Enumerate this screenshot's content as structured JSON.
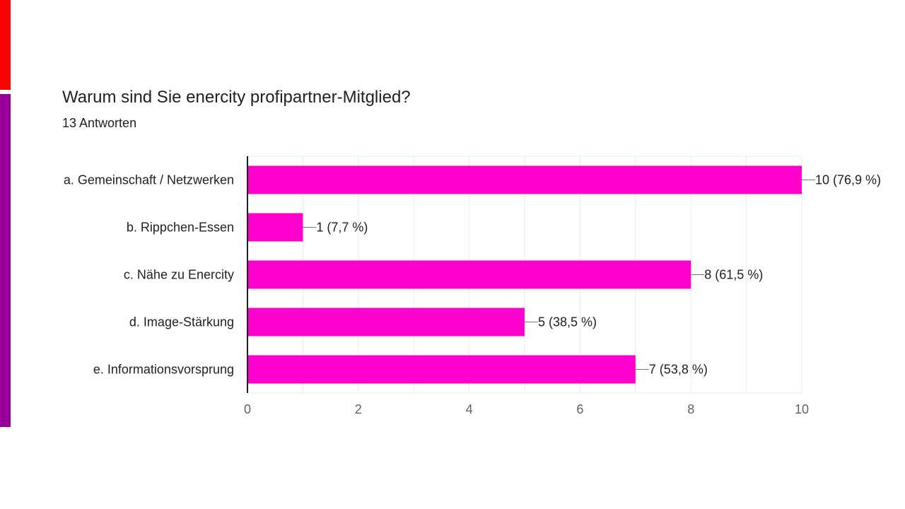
{
  "colors": {
    "accent_top": "#ff0000",
    "accent_bottom": "#990099",
    "bar": "#ff00cc",
    "text": "#202124",
    "tick": "#5f6368",
    "grid": "#ebebeb",
    "axis": "#202124",
    "leader": "#777777"
  },
  "chart_data": {
    "type": "bar",
    "orientation": "horizontal",
    "title": "Warum sind Sie enercity profipartner-Mitglied?",
    "subtitle": "13 Antworten",
    "categories": [
      "a. Gemeinschaft / Netzwerken",
      "b. Rippchen-Essen",
      "c. Nähe zu Enercity",
      "d. Image-Stärkung",
      "e. Informationsvorsprung"
    ],
    "values": [
      10,
      1,
      8,
      5,
      7
    ],
    "data_labels": [
      "10 (76,9 %)",
      "1 (7,7 %)",
      "8 (61,5 %)",
      "5 (38,5 %)",
      "7 (53,8 %)"
    ],
    "xlim": [
      0,
      10
    ],
    "x_ticks": [
      0,
      2,
      4,
      6,
      8,
      10
    ],
    "x_tick_labels": [
      "0",
      "2",
      "4",
      "6",
      "8",
      "10"
    ],
    "grid": true,
    "legend": "none"
  }
}
